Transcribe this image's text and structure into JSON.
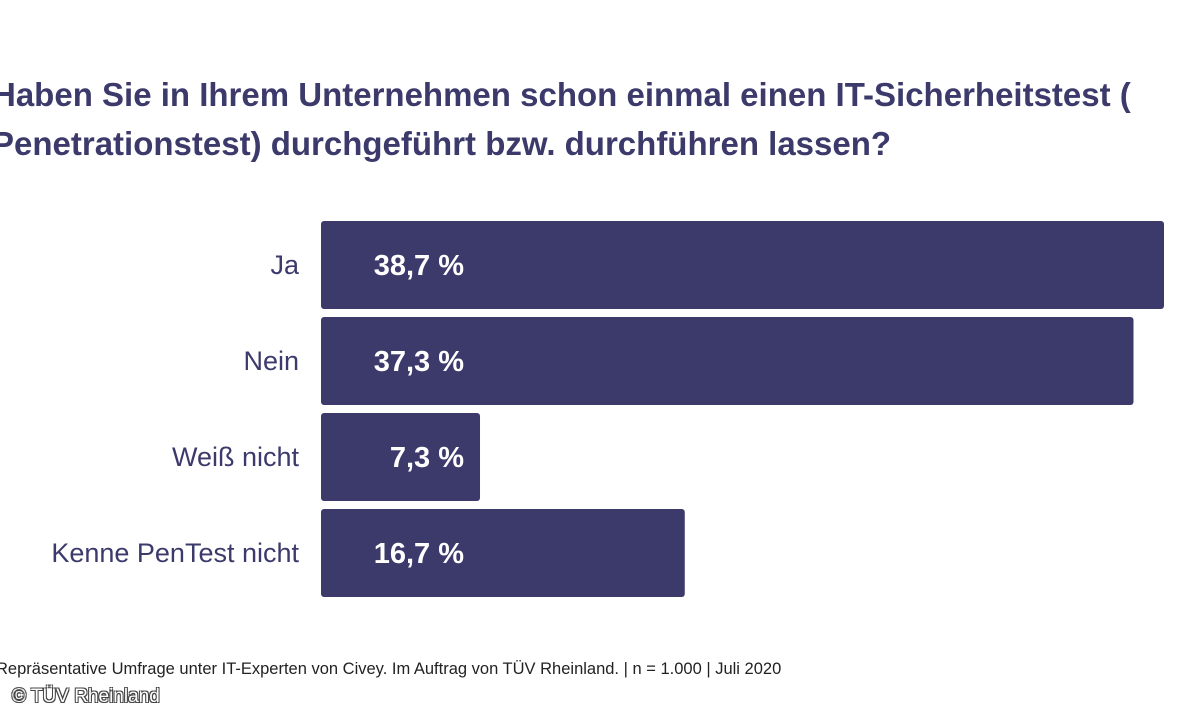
{
  "chart_data": {
    "type": "bar",
    "orientation": "horizontal",
    "title_lines": [
      "Haben Sie in Ihrem Unternehmen schon einmal einen IT-Sicherheitstest (",
      "Penetrationstest) durchgeführt bzw. durchführen lassen?"
    ],
    "categories": [
      "Ja",
      "Nein",
      "Weiß nicht",
      "Kenne PenTest nicht"
    ],
    "values": [
      38.7,
      37.3,
      7.3,
      16.7
    ],
    "value_labels": [
      "38,7 %",
      "37,3 %",
      "7,3 %",
      "16,7 %"
    ],
    "unit": "%",
    "xlim": [
      0,
      38.7
    ],
    "grid": false,
    "bar_color": "#3b3a6b",
    "label_color": "#ffffff",
    "footnote": "Repräsentative Umfrage unter IT-Experten von Civey. Im Auftrag von TÜV Rheinland. | n = 1.000 | Juli 2020",
    "copyright": "© TÜV Rheinland"
  }
}
